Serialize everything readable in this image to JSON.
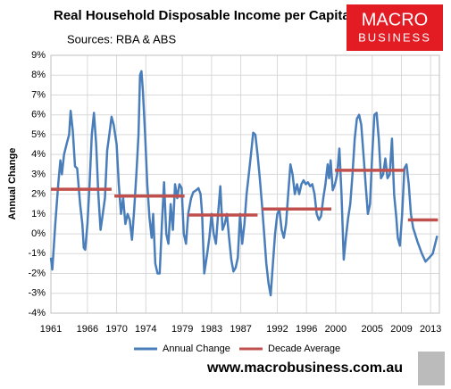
{
  "chart_data": {
    "type": "line",
    "title": "Real Household Disposable Income per Capita",
    "subtitle": "Sources: RBA & ABS",
    "logo": [
      "MACRO",
      "BUSINESS"
    ],
    "footer": "www.macrobusiness.com.au",
    "ylabel": "Annual Change",
    "xlim": [
      1961,
      2014.2
    ],
    "xticks": [
      1961,
      1966,
      1970,
      1974,
      1979,
      1983,
      1987,
      1992,
      1996,
      2000,
      2005,
      2009,
      2013
    ],
    "ylim": [
      -4,
      9
    ],
    "yticks": [
      {
        "value": -4,
        "label": "-4%"
      },
      {
        "value": -3,
        "label": "-3%"
      },
      {
        "value": -2,
        "label": "-2%"
      },
      {
        "value": -1,
        "label": "-1%"
      },
      {
        "value": 0,
        "label": "0%"
      },
      {
        "value": 1,
        "label": "1%"
      },
      {
        "value": 2,
        "label": "2%"
      },
      {
        "value": 3,
        "label": "3%"
      },
      {
        "value": 4,
        "label": "4%"
      },
      {
        "value": 5,
        "label": "5%"
      },
      {
        "value": 6,
        "label": "6%"
      },
      {
        "value": 7,
        "label": "7%"
      },
      {
        "value": 8,
        "label": "8%"
      },
      {
        "value": 9,
        "label": "9%"
      }
    ],
    "grid": true,
    "legend": "bottom",
    "series": [
      {
        "name": "Annual Change",
        "color": "#4a7ebb",
        "x": [
          1961.0,
          1961.2,
          1961.6,
          1962,
          1962.3,
          1962.5,
          1962.8,
          1963.2,
          1963.5,
          1963.7,
          1964,
          1964.3,
          1964.6,
          1965,
          1965.3,
          1965.5,
          1965.7,
          1966,
          1966.3,
          1966.6,
          1966.9,
          1967.2,
          1967.5,
          1967.8,
          1968.1,
          1968.4,
          1968.7,
          1969,
          1969.3,
          1969.6,
          1970,
          1970.3,
          1970.6,
          1970.9,
          1971.2,
          1971.5,
          1971.8,
          1972.1,
          1972.4,
          1972.7,
          1973.0,
          1973.2,
          1973.4,
          1973.6,
          1973.9,
          1974.2,
          1974.5,
          1974.8,
          1975,
          1975.3,
          1975.6,
          1975.9,
          1976.2,
          1976.5,
          1976.8,
          1977.1,
          1977.4,
          1977.7,
          1978,
          1978.3,
          1978.6,
          1978.9,
          1979.2,
          1979.5,
          1979.8,
          1980.2,
          1980.5,
          1980.9,
          1981.2,
          1981.5,
          1981.7,
          1982,
          1982.4,
          1982.7,
          1983,
          1983.3,
          1983.6,
          1983.9,
          1984.2,
          1984.5,
          1984.8,
          1985.1,
          1985.4,
          1985.7,
          1986,
          1986.3,
          1986.6,
          1986.9,
          1987.2,
          1987.5,
          1987.8,
          1988.1,
          1988.4,
          1988.7,
          1989,
          1989.3,
          1989.6,
          1989.9,
          1990.2,
          1990.5,
          1990.8,
          1991.1,
          1991.4,
          1991.7,
          1992,
          1992.3,
          1992.6,
          1992.9,
          1993.2,
          1993.5,
          1993.8,
          1994.1,
          1994.4,
          1994.7,
          1995,
          1995.3,
          1995.6,
          1995.9,
          1996.2,
          1996.5,
          1996.8,
          1997.1,
          1997.4,
          1997.7,
          1998,
          1998.3,
          1998.6,
          1998.9,
          1999.1,
          1999.3,
          1999.6,
          1999.9,
          2000.2,
          2000.5,
          2000.8,
          2001.1,
          2001.4,
          2001.7,
          2002,
          2002.3,
          2002.6,
          2002.9,
          2003.2,
          2003.5,
          2003.8,
          2004.1,
          2004.4,
          2004.7,
          2005,
          2005.3,
          2005.6,
          2005.9,
          2006.2,
          2006.5,
          2006.8,
          2007.1,
          2007.4,
          2007.7,
          2008,
          2008.3,
          2008.5,
          2008.8,
          2009.1,
          2009.4,
          2009.7,
          2010.0,
          2010.3,
          2010.6,
          2011.2,
          2011.8,
          2012.3,
          2012.8,
          2013.3,
          2013.9
        ],
        "values": [
          -1.2,
          -1.8,
          0.5,
          2.5,
          3.7,
          3.0,
          4.0,
          4.6,
          5.0,
          6.2,
          5.2,
          3.4,
          3.3,
          1.5,
          0.5,
          -0.7,
          -0.8,
          0.5,
          2.5,
          5.0,
          6.1,
          4.5,
          2.0,
          0.2,
          1.0,
          1.8,
          4.2,
          5.0,
          5.9,
          5.5,
          4.5,
          2.5,
          1.0,
          1.8,
          0.5,
          1.0,
          0.7,
          -0.3,
          1.2,
          3.0,
          5.0,
          8.0,
          8.2,
          7.2,
          5.0,
          2.5,
          0.8,
          -0.2,
          1.0,
          -1.5,
          -2.0,
          -2.0,
          0.5,
          2.6,
          0.0,
          -0.5,
          1.5,
          0.2,
          2.5,
          1.8,
          2.5,
          2.3,
          0,
          -0.5,
          1.0,
          1.8,
          2.1,
          2.2,
          2.3,
          2.0,
          1.0,
          -2.0,
          -1.0,
          -0.2,
          1.0,
          0.0,
          -0.5,
          1.0,
          2.4,
          0.2,
          0.5,
          1.0,
          -0.2,
          -1.3,
          -1.9,
          -1.7,
          -1.2,
          1.0,
          -0.5,
          0.5,
          2.0,
          3.0,
          4.0,
          5.1,
          5.0,
          4.0,
          2.8,
          1.5,
          0,
          -1.5,
          -2.5,
          -3.1,
          -1.5,
          0.0,
          1.0,
          1.2,
          0.2,
          -0.2,
          0.5,
          2.0,
          3.5,
          3.0,
          2.0,
          2.5,
          2.0,
          2.5,
          2.7,
          2.5,
          2.6,
          2.4,
          2.5,
          2.0,
          1.0,
          0.7,
          0.9,
          1.8,
          2.5,
          3.5,
          2.8,
          3.7,
          2.2,
          2.5,
          3.0,
          4.3,
          2.0,
          -1.3,
          -0.2,
          0.8,
          1.5,
          3.0,
          4.8,
          5.8,
          6.0,
          5.5,
          4.0,
          2.5,
          1.0,
          1.5,
          4.0,
          6.0,
          6.1,
          4.8,
          2.8,
          3.0,
          3.8,
          2.8,
          3.0,
          4.8,
          2.0,
          0.8,
          -0.2,
          -0.6,
          1.0,
          3.3,
          3.5,
          2.5,
          1.0,
          0.3,
          -0.4,
          -1.0,
          -1.4,
          -1.2,
          -1.0,
          -0.1
        ]
      },
      {
        "name": "Decade Average",
        "color": "#c0504d",
        "x": [
          1961,
          1969.3,
          1969.5,
          1969.7,
          1979.3,
          1979.5,
          1979.8,
          1989.3,
          1989.5,
          1989.9,
          1999.4,
          1999.6,
          1999.9,
          2009.4,
          2009.6,
          2009.9,
          2014.0
        ],
        "values": [
          2.25,
          2.25,
          null,
          1.9,
          1.9,
          null,
          0.95,
          0.95,
          null,
          1.25,
          1.25,
          null,
          3.2,
          3.2,
          null,
          0.7,
          0.7
        ]
      }
    ]
  }
}
